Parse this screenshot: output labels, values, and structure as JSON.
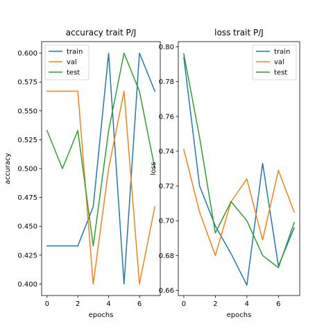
{
  "chart_data": [
    {
      "type": "line",
      "title": "accuracy trait P/J",
      "xlabel": "epochs",
      "ylabel": "accuracy",
      "x": [
        0,
        1,
        2,
        3,
        4,
        5,
        6,
        7
      ],
      "xlim": [
        -0.35,
        7.35
      ],
      "ylim": [
        0.39,
        0.61
      ],
      "xticks": [
        0,
        2,
        4,
        6
      ],
      "yticks": [
        0.4,
        0.425,
        0.45,
        0.475,
        0.5,
        0.525,
        0.55,
        0.575,
        0.6
      ],
      "ytick_labels": [
        "0.400",
        "0.425",
        "0.450",
        "0.475",
        "0.500",
        "0.525",
        "0.550",
        "0.575",
        "0.600"
      ],
      "legend": "top-left",
      "grid": false,
      "series": [
        {
          "name": "train",
          "color": "#1f77b4",
          "values": [
            0.433,
            0.433,
            0.433,
            0.467,
            0.6,
            0.4,
            0.6,
            0.567
          ]
        },
        {
          "name": "val",
          "color": "#ff7f0e",
          "values": [
            0.567,
            0.567,
            0.567,
            0.4,
            0.5,
            0.567,
            0.4,
            0.467
          ]
        },
        {
          "name": "test",
          "color": "#2ca02c",
          "values": [
            0.533,
            0.5,
            0.533,
            0.433,
            0.533,
            0.6,
            0.567,
            0.5
          ]
        }
      ]
    },
    {
      "type": "line",
      "title": "loss trait P/J",
      "xlabel": "epochs",
      "ylabel": "loss",
      "x": [
        0,
        1,
        2,
        3,
        4,
        5,
        6,
        7
      ],
      "xlim": [
        -0.35,
        7.35
      ],
      "ylim": [
        0.657,
        0.803
      ],
      "xticks": [
        0,
        2,
        4,
        6
      ],
      "yticks": [
        0.66,
        0.68,
        0.7,
        0.72,
        0.74,
        0.76,
        0.78,
        0.8
      ],
      "ytick_labels": [
        "0.66",
        "0.68",
        "0.70",
        "0.72",
        "0.74",
        "0.76",
        "0.78",
        "0.80"
      ],
      "legend": "top-right",
      "grid": false,
      "series": [
        {
          "name": "train",
          "color": "#1f77b4",
          "values": [
            0.794,
            0.72,
            0.697,
            0.681,
            0.663,
            0.733,
            0.674,
            0.696
          ]
        },
        {
          "name": "val",
          "color": "#ff7f0e",
          "values": [
            0.741,
            0.705,
            0.68,
            0.711,
            0.724,
            0.689,
            0.729,
            0.705
          ]
        },
        {
          "name": "test",
          "color": "#2ca02c",
          "values": [
            0.796,
            0.748,
            0.693,
            0.711,
            0.7,
            0.68,
            0.673,
            0.699
          ]
        }
      ]
    }
  ]
}
